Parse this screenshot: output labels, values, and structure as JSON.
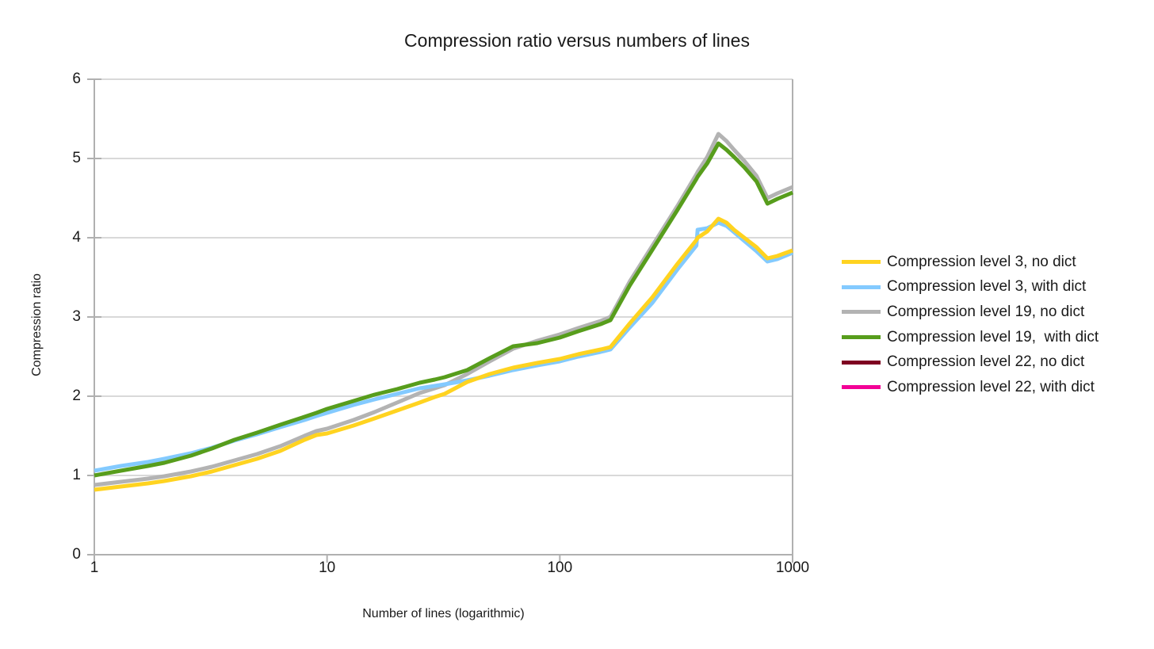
{
  "chart_data": {
    "type": "line",
    "title": "Compression ratio versus numbers of lines",
    "xlabel": "Number of lines (logarithmic)",
    "ylabel": "Compression ratio",
    "x_scale": "log",
    "xlim": [
      1,
      1000
    ],
    "ylim": [
      0,
      6
    ],
    "x_ticks": [
      1,
      10,
      100,
      1000
    ],
    "y_ticks": [
      0,
      1,
      2,
      3,
      4,
      5,
      6
    ],
    "grid": "horizontal-only",
    "legend_position": "right",
    "x": [
      1,
      1.3,
      1.7,
      2,
      2.6,
      3.2,
      4,
      5,
      6.3,
      8,
      9,
      10,
      13,
      16,
      20,
      25,
      29,
      32,
      40,
      50,
      63,
      80,
      100,
      120,
      150,
      165,
      200,
      250,
      320,
      386,
      391,
      430,
      480,
      520,
      560,
      620,
      700,
      780,
      860,
      1000
    ],
    "series": [
      {
        "name": "Compression level 3, no dict",
        "color": "#FFD320",
        "z": 3,
        "visible_in_plot": true,
        "values": [
          0.82,
          0.86,
          0.9,
          0.93,
          0.99,
          1.05,
          1.13,
          1.21,
          1.31,
          1.45,
          1.51,
          1.53,
          1.63,
          1.72,
          1.82,
          1.92,
          1.99,
          2.03,
          2.18,
          2.28,
          2.36,
          2.42,
          2.47,
          2.53,
          2.59,
          2.62,
          2.92,
          3.25,
          3.67,
          3.97,
          4.0,
          4.08,
          4.24,
          4.19,
          4.1,
          4.0,
          3.88,
          3.74,
          3.77,
          3.84
        ]
      },
      {
        "name": "Compression level 3, with dict",
        "color": "#83CAFF",
        "z": 2,
        "visible_in_plot": true,
        "values": [
          1.06,
          1.12,
          1.17,
          1.21,
          1.28,
          1.35,
          1.44,
          1.52,
          1.61,
          1.7,
          1.75,
          1.79,
          1.89,
          1.96,
          2.03,
          2.1,
          2.13,
          2.15,
          2.2,
          2.26,
          2.33,
          2.39,
          2.44,
          2.5,
          2.56,
          2.59,
          2.87,
          3.18,
          3.6,
          3.9,
          4.1,
          4.12,
          4.19,
          4.15,
          4.07,
          3.96,
          3.83,
          3.7,
          3.73,
          3.81
        ]
      },
      {
        "name": "Compression level 19, no dict",
        "color": "#B3B3B3",
        "z": 1,
        "visible_in_plot": true,
        "values": [
          0.88,
          0.92,
          0.96,
          0.99,
          1.05,
          1.11,
          1.19,
          1.27,
          1.37,
          1.5,
          1.56,
          1.59,
          1.7,
          1.8,
          1.92,
          2.04,
          2.1,
          2.14,
          2.28,
          2.44,
          2.6,
          2.7,
          2.78,
          2.86,
          2.95,
          3.0,
          3.45,
          3.9,
          4.4,
          4.8,
          4.83,
          5.02,
          5.31,
          5.22,
          5.11,
          4.97,
          4.78,
          4.5,
          4.56,
          4.64
        ]
      },
      {
        "name": "Compression level 19,  with dict",
        "color": "#579D1C",
        "z": 4,
        "visible_in_plot": true,
        "values": [
          1.0,
          1.06,
          1.12,
          1.16,
          1.25,
          1.34,
          1.45,
          1.54,
          1.64,
          1.74,
          1.79,
          1.84,
          1.94,
          2.02,
          2.09,
          2.17,
          2.21,
          2.24,
          2.33,
          2.48,
          2.63,
          2.67,
          2.74,
          2.82,
          2.91,
          2.96,
          3.4,
          3.85,
          4.35,
          4.74,
          4.77,
          4.94,
          5.19,
          5.11,
          5.02,
          4.89,
          4.71,
          4.43,
          4.49,
          4.57
        ]
      },
      {
        "name": "Compression level 22, no dict",
        "color": "#7E0021",
        "z": 0,
        "visible_in_plot": false,
        "values": []
      },
      {
        "name": "Compression level 22, with dict",
        "color": "#F30096",
        "z": 0,
        "visible_in_plot": false,
        "values": []
      }
    ]
  },
  "colors": {
    "background": "#ffffff",
    "gridline": "#d9d9d9",
    "axis": "#b0b0b0",
    "text": "#1a1a1a"
  }
}
